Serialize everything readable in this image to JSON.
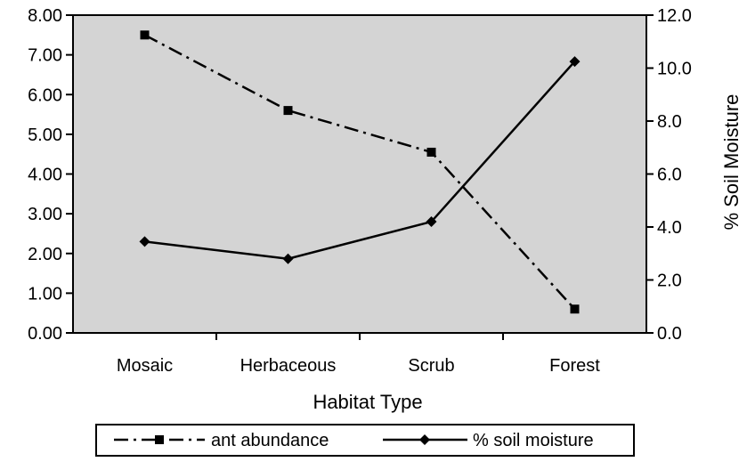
{
  "chart_data": {
    "type": "line",
    "categories": [
      "Mosaic",
      "Herbaceous",
      "Scrub",
      "Forest"
    ],
    "xlabel": "Habitat Type",
    "ylabel": "",
    "y2label": "% Soil Moisture",
    "ylim": [
      0,
      8
    ],
    "y2lim": [
      0,
      12
    ],
    "yticks": [
      "0.00",
      "1.00",
      "2.00",
      "3.00",
      "4.00",
      "5.00",
      "6.00",
      "7.00",
      "8.00"
    ],
    "y2ticks": [
      "0.0",
      "2.0",
      "4.0",
      "6.0",
      "8.0",
      "10.0",
      "12.0"
    ],
    "plot_background": "#d4d4d4",
    "grid": false,
    "legend_position": "bottom",
    "series": [
      {
        "name": "ant abundance",
        "axis": "left",
        "style": "dash-dot",
        "marker": "square",
        "color": "#000000",
        "values": [
          7.5,
          5.6,
          4.55,
          0.6
        ]
      },
      {
        "name": "% soil moisture",
        "axis": "right",
        "style": "solid",
        "marker": "diamond",
        "color": "#000000",
        "values": [
          3.45,
          2.8,
          4.2,
          10.25
        ]
      }
    ]
  }
}
